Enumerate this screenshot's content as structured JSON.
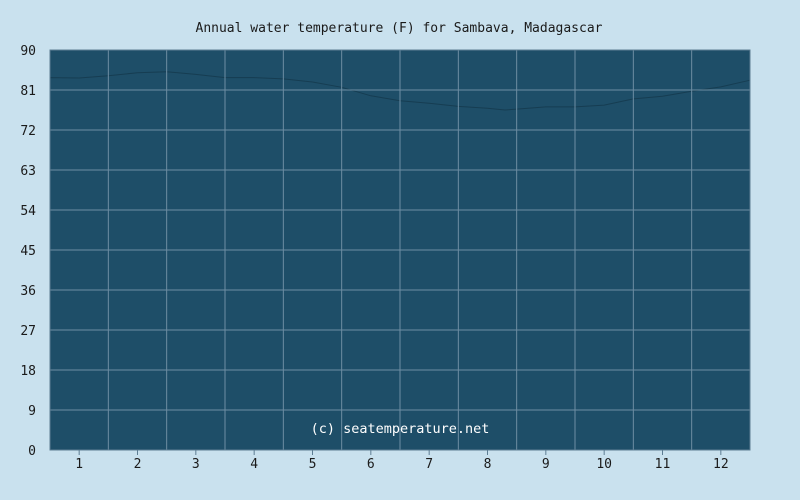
{
  "chart_data": {
    "type": "area",
    "title": "Annual water temperature (F) for Sambava, Madagascar",
    "credit": "(c) seatemperature.net",
    "xlabel": "",
    "ylabel": "",
    "categories": [
      "1",
      "2",
      "3",
      "4",
      "5",
      "6",
      "7",
      "8",
      "9",
      "10",
      "11",
      "12"
    ],
    "ylim": [
      0,
      90
    ],
    "yticks": [
      "0",
      "9",
      "18",
      "27",
      "36",
      "45",
      "54",
      "63",
      "72",
      "81",
      "90"
    ],
    "grid": true,
    "legend": "none",
    "series": [
      {
        "x": [
          0.5,
          1,
          1.5,
          2,
          2.5,
          3,
          3.5,
          4,
          4.5,
          5,
          5.5,
          6,
          6.5,
          7,
          7.5,
          8,
          8.3,
          8.5,
          9,
          9.5,
          10,
          10.5,
          11,
          11.5,
          12,
          12.5
        ],
        "values": [
          83.8,
          83.7,
          84.2,
          84.9,
          85.1,
          84.5,
          83.8,
          83.8,
          83.5,
          82.8,
          81.6,
          79.7,
          78.6,
          78.0,
          77.3,
          76.9,
          76.5,
          76.7,
          77.2,
          77.2,
          77.6,
          79.0,
          79.6,
          80.7,
          81.7,
          83.2
        ]
      }
    ],
    "colors": {
      "background": "#c9e1ee",
      "plot_fill": "#1e4e68",
      "grid": "#6e8ea3",
      "axis": "#5d7d93"
    }
  }
}
